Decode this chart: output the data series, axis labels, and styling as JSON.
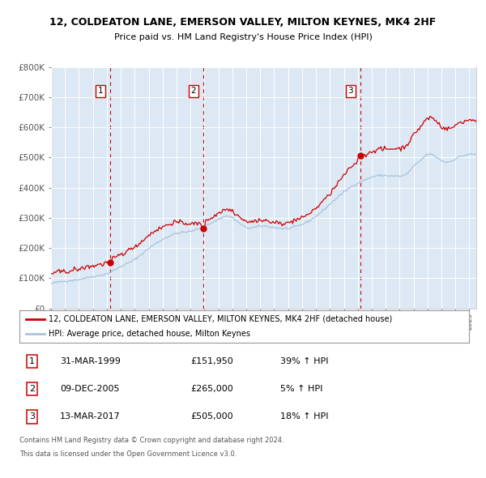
{
  "title1": "12, COLDEATON LANE, EMERSON VALLEY, MILTON KEYNES, MK4 2HF",
  "title2": "Price paid vs. HM Land Registry's House Price Index (HPI)",
  "legend_line1": "12, COLDEATON LANE, EMERSON VALLEY, MILTON KEYNES, MK4 2HF (detached house)",
  "legend_line2": "HPI: Average price, detached house, Milton Keynes",
  "sale_rows": [
    {
      "num": "1",
      "date": "31-MAR-1999",
      "price": "£151,950",
      "pct": "39% ↑ HPI",
      "sale_date_dt": [
        1999,
        3,
        31
      ],
      "sale_price": 151950
    },
    {
      "num": "2",
      "date": "09-DEC-2005",
      "price": "£265,000",
      "pct": "5% ↑ HPI",
      "sale_date_dt": [
        2005,
        12,
        9
      ],
      "sale_price": 265000
    },
    {
      "num": "3",
      "date": "13-MAR-2017",
      "price": "£505,000",
      "pct": "18% ↑ HPI",
      "sale_date_dt": [
        2017,
        3,
        13
      ],
      "sale_price": 505000
    }
  ],
  "footnote1": "Contains HM Land Registry data © Crown copyright and database right 2024.",
  "footnote2": "This data is licensed under the Open Government Licence v3.0.",
  "hpi_color": "#a8c4dc",
  "price_color": "#cc0000",
  "dashed_color": "#cc0000",
  "bg_color": "#dce8f4",
  "grid_color": "#ffffff",
  "ylim": [
    0,
    800000
  ],
  "yticks": [
    0,
    100000,
    200000,
    300000,
    400000,
    500000,
    600000,
    700000,
    800000
  ],
  "ytick_labels": [
    "£0",
    "£100K",
    "£200K",
    "£300K",
    "£400K",
    "£500K",
    "£600K",
    "£700K",
    "£800K"
  ],
  "x_start_year": 1995,
  "x_end_year": 2025
}
